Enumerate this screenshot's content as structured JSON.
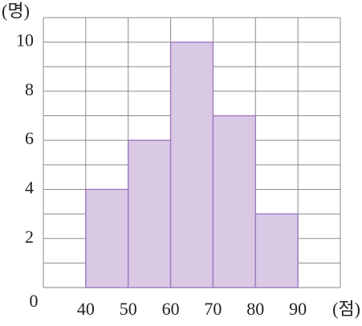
{
  "chart_data": {
    "type": "histogram",
    "y_label": "(명)",
    "x_label": "(점)",
    "bins": [
      40,
      50,
      60,
      70,
      80,
      90
    ],
    "values": [
      4,
      6,
      10,
      7,
      3
    ],
    "color": "#d9c9e5",
    "edge_color": "#a37fc3",
    "xlim": [
      30,
      100
    ],
    "xticks": [
      40,
      50,
      60,
      70,
      80,
      90
    ],
    "minor_xticks": [
      30,
      100
    ],
    "ylim": [
      0,
      11
    ],
    "yticks": [
      0,
      2,
      4,
      6,
      8,
      10
    ],
    "minor_yticks": [
      1,
      3,
      5,
      7,
      9,
      11
    ],
    "grid": true
  }
}
